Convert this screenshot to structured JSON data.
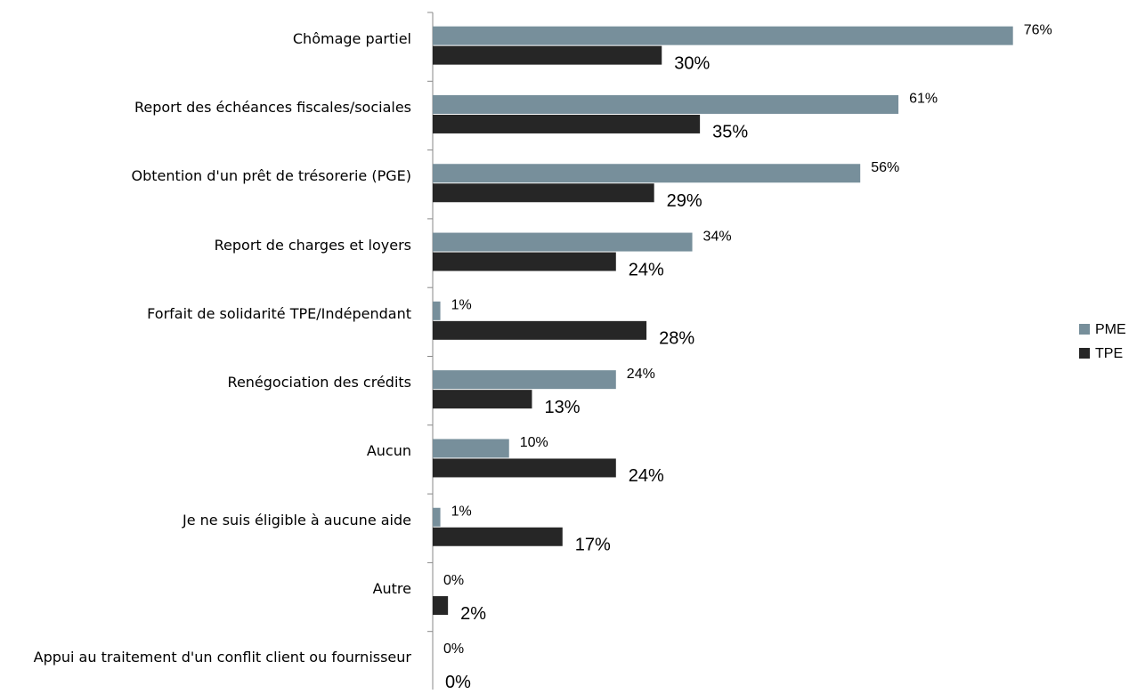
{
  "chart_data": {
    "type": "barh",
    "categories": [
      "Chômage partiel",
      "Report des échéances fiscales/sociales",
      "Obtention d'un prêt de trésorerie (PGE)",
      "Report de charges et loyers",
      "Forfait de solidarité TPE/Indépendant",
      "Renégociation des crédits",
      "Aucun",
      "Je ne suis éligible à aucune aide",
      "Autre",
      "Appui au traitement d'un conflit client ou fournisseur"
    ],
    "series": [
      {
        "name": "PME",
        "color": "#778f9b",
        "values": [
          76,
          61,
          56,
          34,
          1,
          24,
          10,
          1,
          0,
          0
        ],
        "value_labels": [
          "76%",
          "61%",
          "56%",
          "34%",
          "1%",
          "24%",
          "10%",
          "1%",
          "0%",
          "0%"
        ]
      },
      {
        "name": "TPE",
        "color": "#262626",
        "values": [
          30,
          35,
          29,
          24,
          28,
          13,
          24,
          17,
          2,
          0
        ],
        "value_labels": [
          "30%",
          "35%",
          "29%",
          "24%",
          "28%",
          "13%",
          "24%",
          "17%",
          "2%",
          "0%"
        ]
      }
    ],
    "xlim": [
      0,
      80
    ],
    "legend": "right"
  }
}
